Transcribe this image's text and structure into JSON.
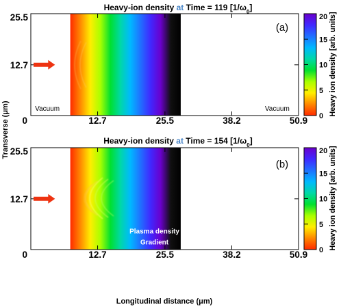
{
  "chart_data": [
    {
      "type": "heatmap",
      "title": {
        "prefix": "Heavy-ion density ",
        "at": "at",
        "time_label": " Time = ",
        "time": "119",
        "units": "[1/ω",
        "units_sub": "0",
        "units_close": "]"
      },
      "panel_label": "(a)",
      "ylabel": "Transverse (μm)",
      "xlabel": "",
      "xticks": [
        "0",
        "12.7",
        "25.5",
        "38.2",
        "50.9"
      ],
      "yticks": [
        "0",
        "12.7",
        "25.5"
      ],
      "xlim": [
        0,
        50.9
      ],
      "ylim": [
        0,
        25.5
      ],
      "plasma_region_x": [
        7.5,
        28.5
      ],
      "colorbar": {
        "label": "Heavy ion density [arb. units]",
        "ticks": [
          "0",
          "5",
          "10",
          "15",
          "20"
        ],
        "range": [
          0,
          20
        ]
      },
      "annotations": [
        {
          "text": "Vacuum",
          "x": 0.8,
          "y": 1.2
        },
        {
          "text": "Vacuum",
          "x": 44.5,
          "y": 1.2
        }
      ],
      "arrow": {
        "x_tip": 4.6,
        "y": 12.7,
        "color": "#ee3311"
      }
    },
    {
      "type": "heatmap",
      "title": {
        "prefix": "Heavy-ion density ",
        "at": "at",
        "time_label": " Time = ",
        "time": "154",
        "units": "[1/ω",
        "units_sub": "0",
        "units_close": "]"
      },
      "panel_label": "(b)",
      "ylabel": "",
      "xlabel": "Longitudinal distance (μm)",
      "xticks": [
        "0",
        "12.7",
        "25.5",
        "38.2",
        "50.9"
      ],
      "yticks": [
        "0",
        "12.7",
        "25.5"
      ],
      "xlim": [
        0,
        50.9
      ],
      "ylim": [
        0,
        25.5
      ],
      "plasma_region_x": [
        7.5,
        28.5
      ],
      "colorbar": {
        "label": "Heavy ion density [arb. units]",
        "ticks": [
          "0",
          "5",
          "10",
          "15",
          "20"
        ],
        "range": [
          0,
          20
        ]
      },
      "annotations": [
        {
          "text": "Plasma density",
          "x": 23.5,
          "y": 4.0
        },
        {
          "text": "Gradient",
          "x": 23.5,
          "y": 1.3
        }
      ],
      "arrow": {
        "x_tip": 4.6,
        "y": 12.7,
        "color": "#ee3311"
      }
    }
  ],
  "colors": {
    "title_accent": "#4a86c8",
    "arrow": "#ee3311",
    "gradient": [
      "#ff2a00",
      "#ff8800",
      "#ffee00",
      "#a8ff00",
      "#00e030",
      "#00d8a8",
      "#00b8ff",
      "#2070ff",
      "#4028ff",
      "#6a00cc",
      "#101010",
      "#000000"
    ]
  }
}
